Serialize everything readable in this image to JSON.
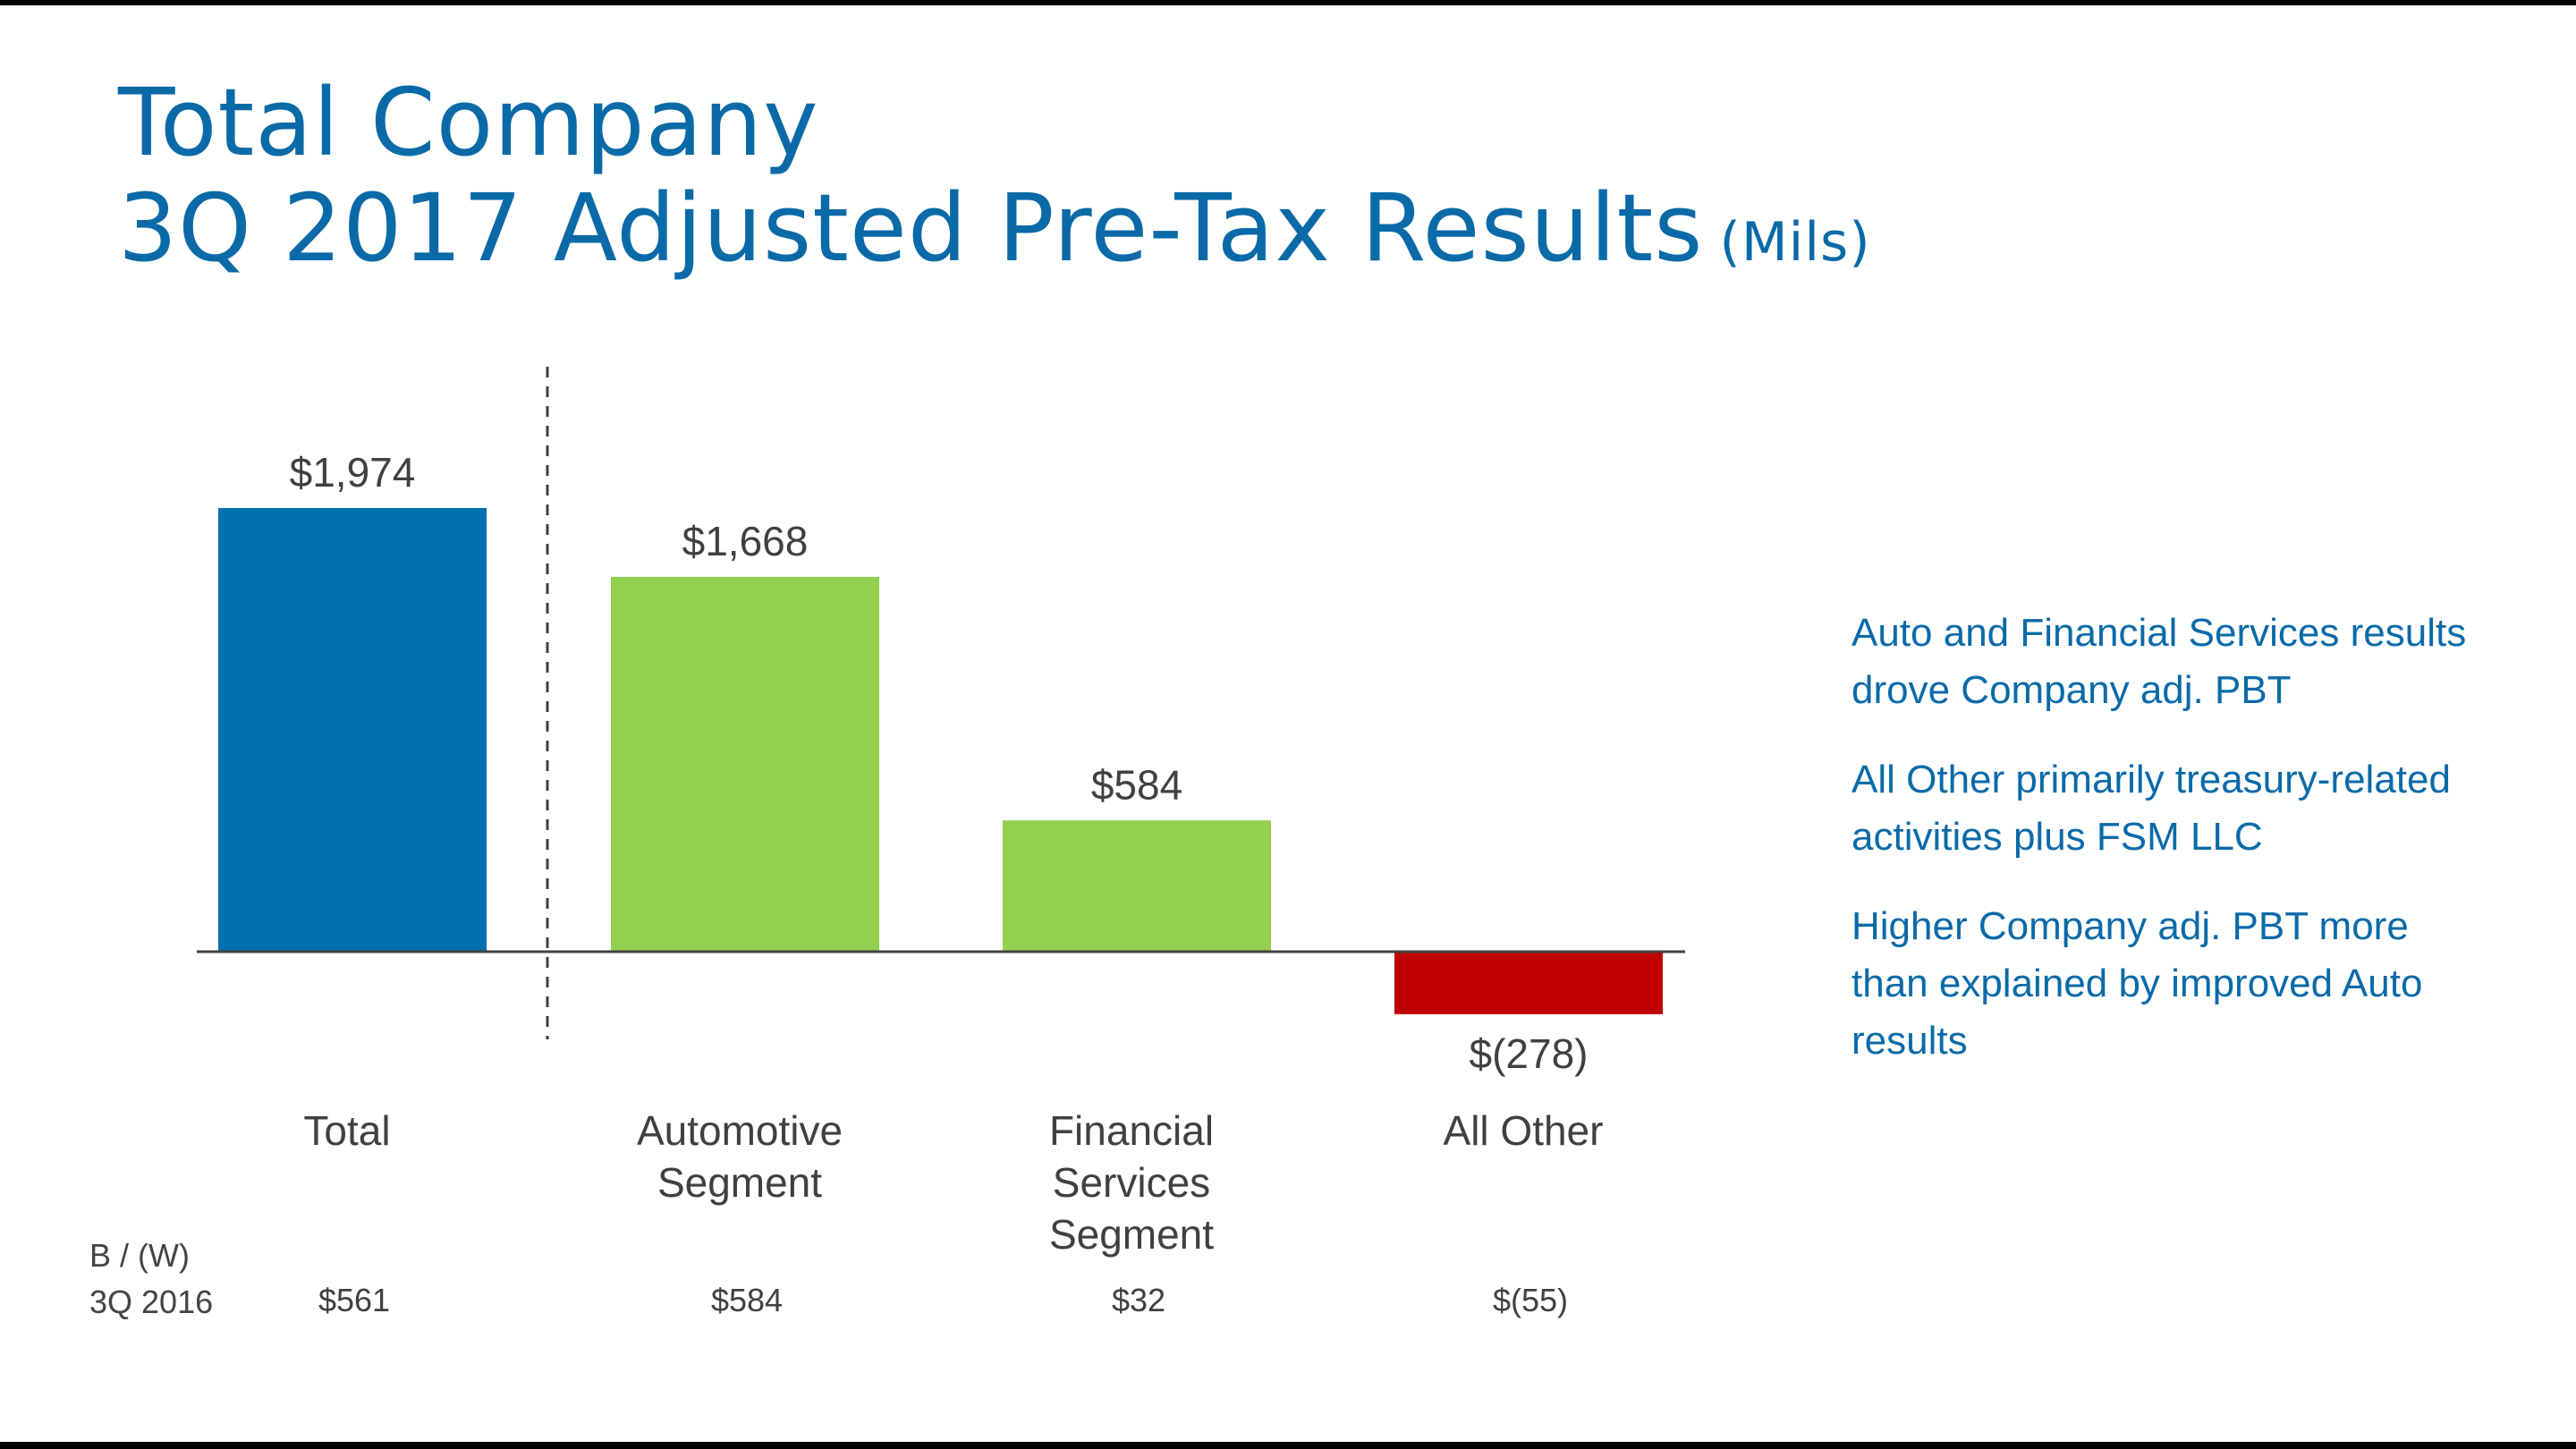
{
  "title": {
    "line1": "Total Company",
    "line2": "3Q 2017 Adjusted Pre-Tax Results",
    "units": "(Mils)"
  },
  "chart_data": {
    "type": "bar",
    "categories": [
      "Total",
      "Automotive Segment",
      "Financial Services Segment",
      "All Other"
    ],
    "values": [
      1974,
      1668,
      584,
      -278
    ],
    "value_labels": [
      "$1,974",
      "$1,668",
      "$584",
      "$(278)"
    ],
    "colors": [
      "#0070b0",
      "#92d050",
      "#92d050",
      "#c00000"
    ],
    "ylim": [
      -278,
      1974
    ],
    "grid": false,
    "divider_after_category": "Total",
    "comparison": {
      "label_line1": "B / (W)",
      "label_line2": "3Q 2016",
      "values": [
        "$561",
        "$584",
        "$32",
        "$(55)"
      ]
    }
  },
  "bullets": [
    "Auto and Financial Services results drove Company adj. PBT",
    "All Other primarily treasury-related activities plus FSM LLC",
    "Higher Company adj. PBT more than explained by improved Auto results"
  ]
}
